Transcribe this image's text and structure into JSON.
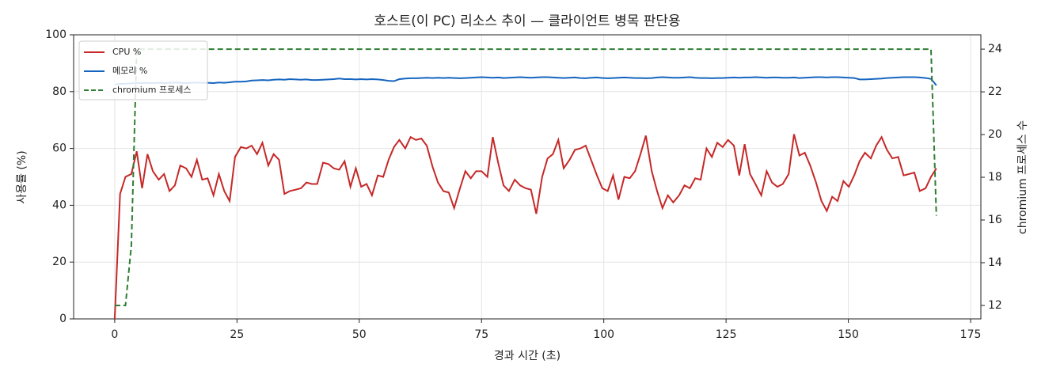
{
  "chart_data": {
    "type": "line",
    "title": "호스트(이 PC) 리소스 추이 — 클라이언트 병목 판단용",
    "xlabel": "경과 시간 (초)",
    "ylabel": "사용률 (%)",
    "y2label": "chromium 프로세스 수",
    "xlim": [
      -8.4,
      177.1
    ],
    "ylim": [
      0,
      100
    ],
    "y2lim": [
      11.37,
      24.67
    ],
    "xticks": [
      0,
      25,
      50,
      75,
      100,
      125,
      150,
      175
    ],
    "yticks": [
      0,
      20,
      40,
      60,
      80,
      100
    ],
    "y2ticks": [
      12,
      14,
      16,
      18,
      20,
      22,
      24
    ],
    "grid": true,
    "legend": "upper-left",
    "x": [
      0,
      1.1,
      2.2,
      3.4,
      4.5,
      5.6,
      6.7,
      7.8,
      9,
      10.1,
      11.2,
      12.3,
      13.4,
      14.6,
      15.7,
      16.8,
      17.9,
      19,
      20.2,
      21.3,
      22.4,
      23.5,
      24.6,
      25.8,
      26.9,
      28,
      29.1,
      30.2,
      31.4,
      32.5,
      33.6,
      34.7,
      35.8,
      37,
      38.1,
      39.2,
      40.3,
      41.4,
      42.6,
      43.7,
      44.8,
      45.9,
      47,
      48.2,
      49.3,
      50.4,
      51.5,
      52.6,
      53.8,
      54.9,
      56,
      57.1,
      58.2,
      59.4,
      60.5,
      61.6,
      62.7,
      63.8,
      65,
      66.1,
      67.2,
      68.3,
      69.4,
      70.6,
      71.7,
      72.8,
      73.9,
      75,
      76.2,
      77.3,
      78.4,
      79.5,
      80.6,
      81.8,
      82.9,
      84,
      85.1,
      86.2,
      87.4,
      88.5,
      89.6,
      90.7,
      91.8,
      93,
      94.1,
      95.2,
      96.3,
      97.4,
      98.6,
      99.7,
      100.8,
      101.9,
      103,
      104.2,
      105.3,
      106.4,
      107.5,
      108.6,
      109.8,
      110.9,
      112,
      113.1,
      114.2,
      115.4,
      116.5,
      117.6,
      118.7,
      119.8,
      121,
      122.1,
      123.2,
      124.3,
      125.4,
      126.6,
      127.7,
      128.8,
      129.9,
      131,
      132.2,
      133.3,
      134.4,
      135.5,
      136.6,
      137.8,
      138.9,
      140,
      141.1,
      142.2,
      143.4,
      144.5,
      145.6,
      146.7,
      147.8,
      149,
      150.1,
      151.2,
      152.3,
      153.4,
      154.6,
      155.7,
      156.8,
      157.9,
      159,
      160.2,
      161.3,
      162.4,
      163.5,
      164.6,
      165.8,
      166.9,
      168
    ],
    "series": [
      {
        "name": "CPU %",
        "color": "#c62828",
        "dash": false,
        "values": [
          0,
          44,
          50,
          51,
          59,
          46,
          58,
          52,
          49,
          51,
          45,
          47,
          54,
          53,
          50,
          56,
          49,
          49.5,
          43.5,
          51,
          45,
          41.5,
          57,
          60.5,
          60,
          61,
          58,
          62,
          54,
          58,
          56,
          44,
          45,
          45.5,
          46,
          48,
          47.5,
          47.5,
          55,
          54.5,
          53,
          52.5,
          55.5,
          46.5,
          53,
          46.5,
          47.5,
          43.5,
          50.5,
          50,
          56,
          60.5,
          63,
          60,
          64,
          63,
          63.5,
          61,
          53.5,
          48,
          45,
          44.5,
          39,
          46,
          52,
          49.5,
          52,
          52,
          50,
          64,
          55,
          47,
          45,
          49,
          47,
          46,
          45.5,
          37,
          50,
          56.5,
          58,
          63,
          53,
          56,
          59.5,
          60,
          61,
          56,
          50.5,
          46,
          45,
          50.5,
          42,
          50,
          49.5,
          52,
          58,
          64.5,
          52,
          45,
          39,
          43.5,
          41,
          43.5,
          47,
          46,
          49.5,
          49,
          60,
          57,
          62,
          60.5,
          63,
          61,
          50.5,
          61.5,
          51,
          47.5,
          43.5,
          52,
          48,
          46.5,
          47.5,
          51,
          65,
          57.5,
          58.5,
          54,
          48,
          41.5,
          38,
          43,
          41.5,
          48.5,
          46.5,
          50.5,
          55.5,
          58.5,
          56.5,
          61,
          64,
          59.5,
          56.5,
          57,
          50.5,
          51,
          51.5,
          45,
          46,
          50,
          53
        ]
      },
      {
        "name": "메모리 %",
        "color": "#1565c0",
        "dash": false,
        "values": [
          82.5,
          82.7,
          82.8,
          82.9,
          83,
          83,
          83.1,
          83,
          83.1,
          83,
          83.1,
          83.2,
          83.1,
          83,
          83.1,
          83.2,
          83.1,
          83.1,
          83,
          83.2,
          83.1,
          83.3,
          83.5,
          83.5,
          83.6,
          83.9,
          84,
          84.1,
          84,
          84.2,
          84.3,
          84.2,
          84.4,
          84.3,
          84.2,
          84.3,
          84.1,
          84.1,
          84.2,
          84.3,
          84.4,
          84.6,
          84.4,
          84.4,
          84.3,
          84.4,
          84.3,
          84.4,
          84.3,
          84.1,
          83.8,
          83.7,
          84.4,
          84.6,
          84.7,
          84.7,
          84.8,
          84.9,
          84.8,
          84.9,
          84.8,
          84.9,
          84.8,
          84.7,
          84.8,
          84.9,
          85,
          85.1,
          85,
          84.9,
          85,
          84.8,
          84.9,
          85,
          85.1,
          85,
          84.9,
          85,
          85.1,
          85.1,
          85,
          84.9,
          84.8,
          84.9,
          85,
          84.8,
          84.7,
          84.9,
          85,
          84.8,
          84.7,
          84.8,
          84.9,
          85,
          84.9,
          84.8,
          84.8,
          84.7,
          84.8,
          85,
          85.1,
          85,
          84.9,
          84.9,
          85,
          85.1,
          84.9,
          84.8,
          84.8,
          84.7,
          84.8,
          84.8,
          84.9,
          85,
          84.9,
          85,
          85,
          85.1,
          85,
          84.9,
          85,
          85,
          84.9,
          84.9,
          85,
          84.8,
          84.9,
          85,
          85.1,
          85.1,
          85,
          85.1,
          85.1,
          85,
          84.9,
          84.8,
          84.3,
          84.3,
          84.4,
          84.5,
          84.6,
          84.8,
          84.9,
          85,
          85.1,
          85.1,
          85.1,
          85,
          84.8,
          84.5,
          82.2
        ]
      },
      {
        "name": "chromium 프로세스",
        "color": "#2e7d32",
        "dash": true,
        "axis": "y2",
        "values": [
          12,
          12,
          12,
          14.8,
          24,
          24,
          24,
          24,
          24,
          24,
          24,
          24,
          24,
          24,
          24,
          24,
          24,
          24,
          24,
          24,
          24,
          24,
          24,
          24,
          24,
          24,
          24,
          24,
          24,
          24,
          24,
          24,
          24,
          24,
          24,
          24,
          24,
          24,
          24,
          24,
          24,
          24,
          24,
          24,
          24,
          24,
          24,
          24,
          24,
          24,
          24,
          24,
          24,
          24,
          24,
          24,
          24,
          24,
          24,
          24,
          24,
          24,
          24,
          24,
          24,
          24,
          24,
          24,
          24,
          24,
          24,
          24,
          24,
          24,
          24,
          24,
          24,
          24,
          24,
          24,
          24,
          24,
          24,
          24,
          24,
          24,
          24,
          24,
          24,
          24,
          24,
          24,
          24,
          24,
          24,
          24,
          24,
          24,
          24,
          24,
          24,
          24,
          24,
          24,
          24,
          24,
          24,
          24,
          24,
          24,
          24,
          24,
          24,
          24,
          24,
          24,
          24,
          24,
          24,
          24,
          24,
          24,
          24,
          24,
          24,
          24,
          24,
          24,
          24,
          24,
          24,
          24,
          24,
          24,
          24,
          24,
          24,
          24,
          24,
          24,
          24,
          24,
          24,
          24,
          24,
          24,
          24,
          24,
          24,
          24,
          16.2
        ]
      }
    ]
  }
}
